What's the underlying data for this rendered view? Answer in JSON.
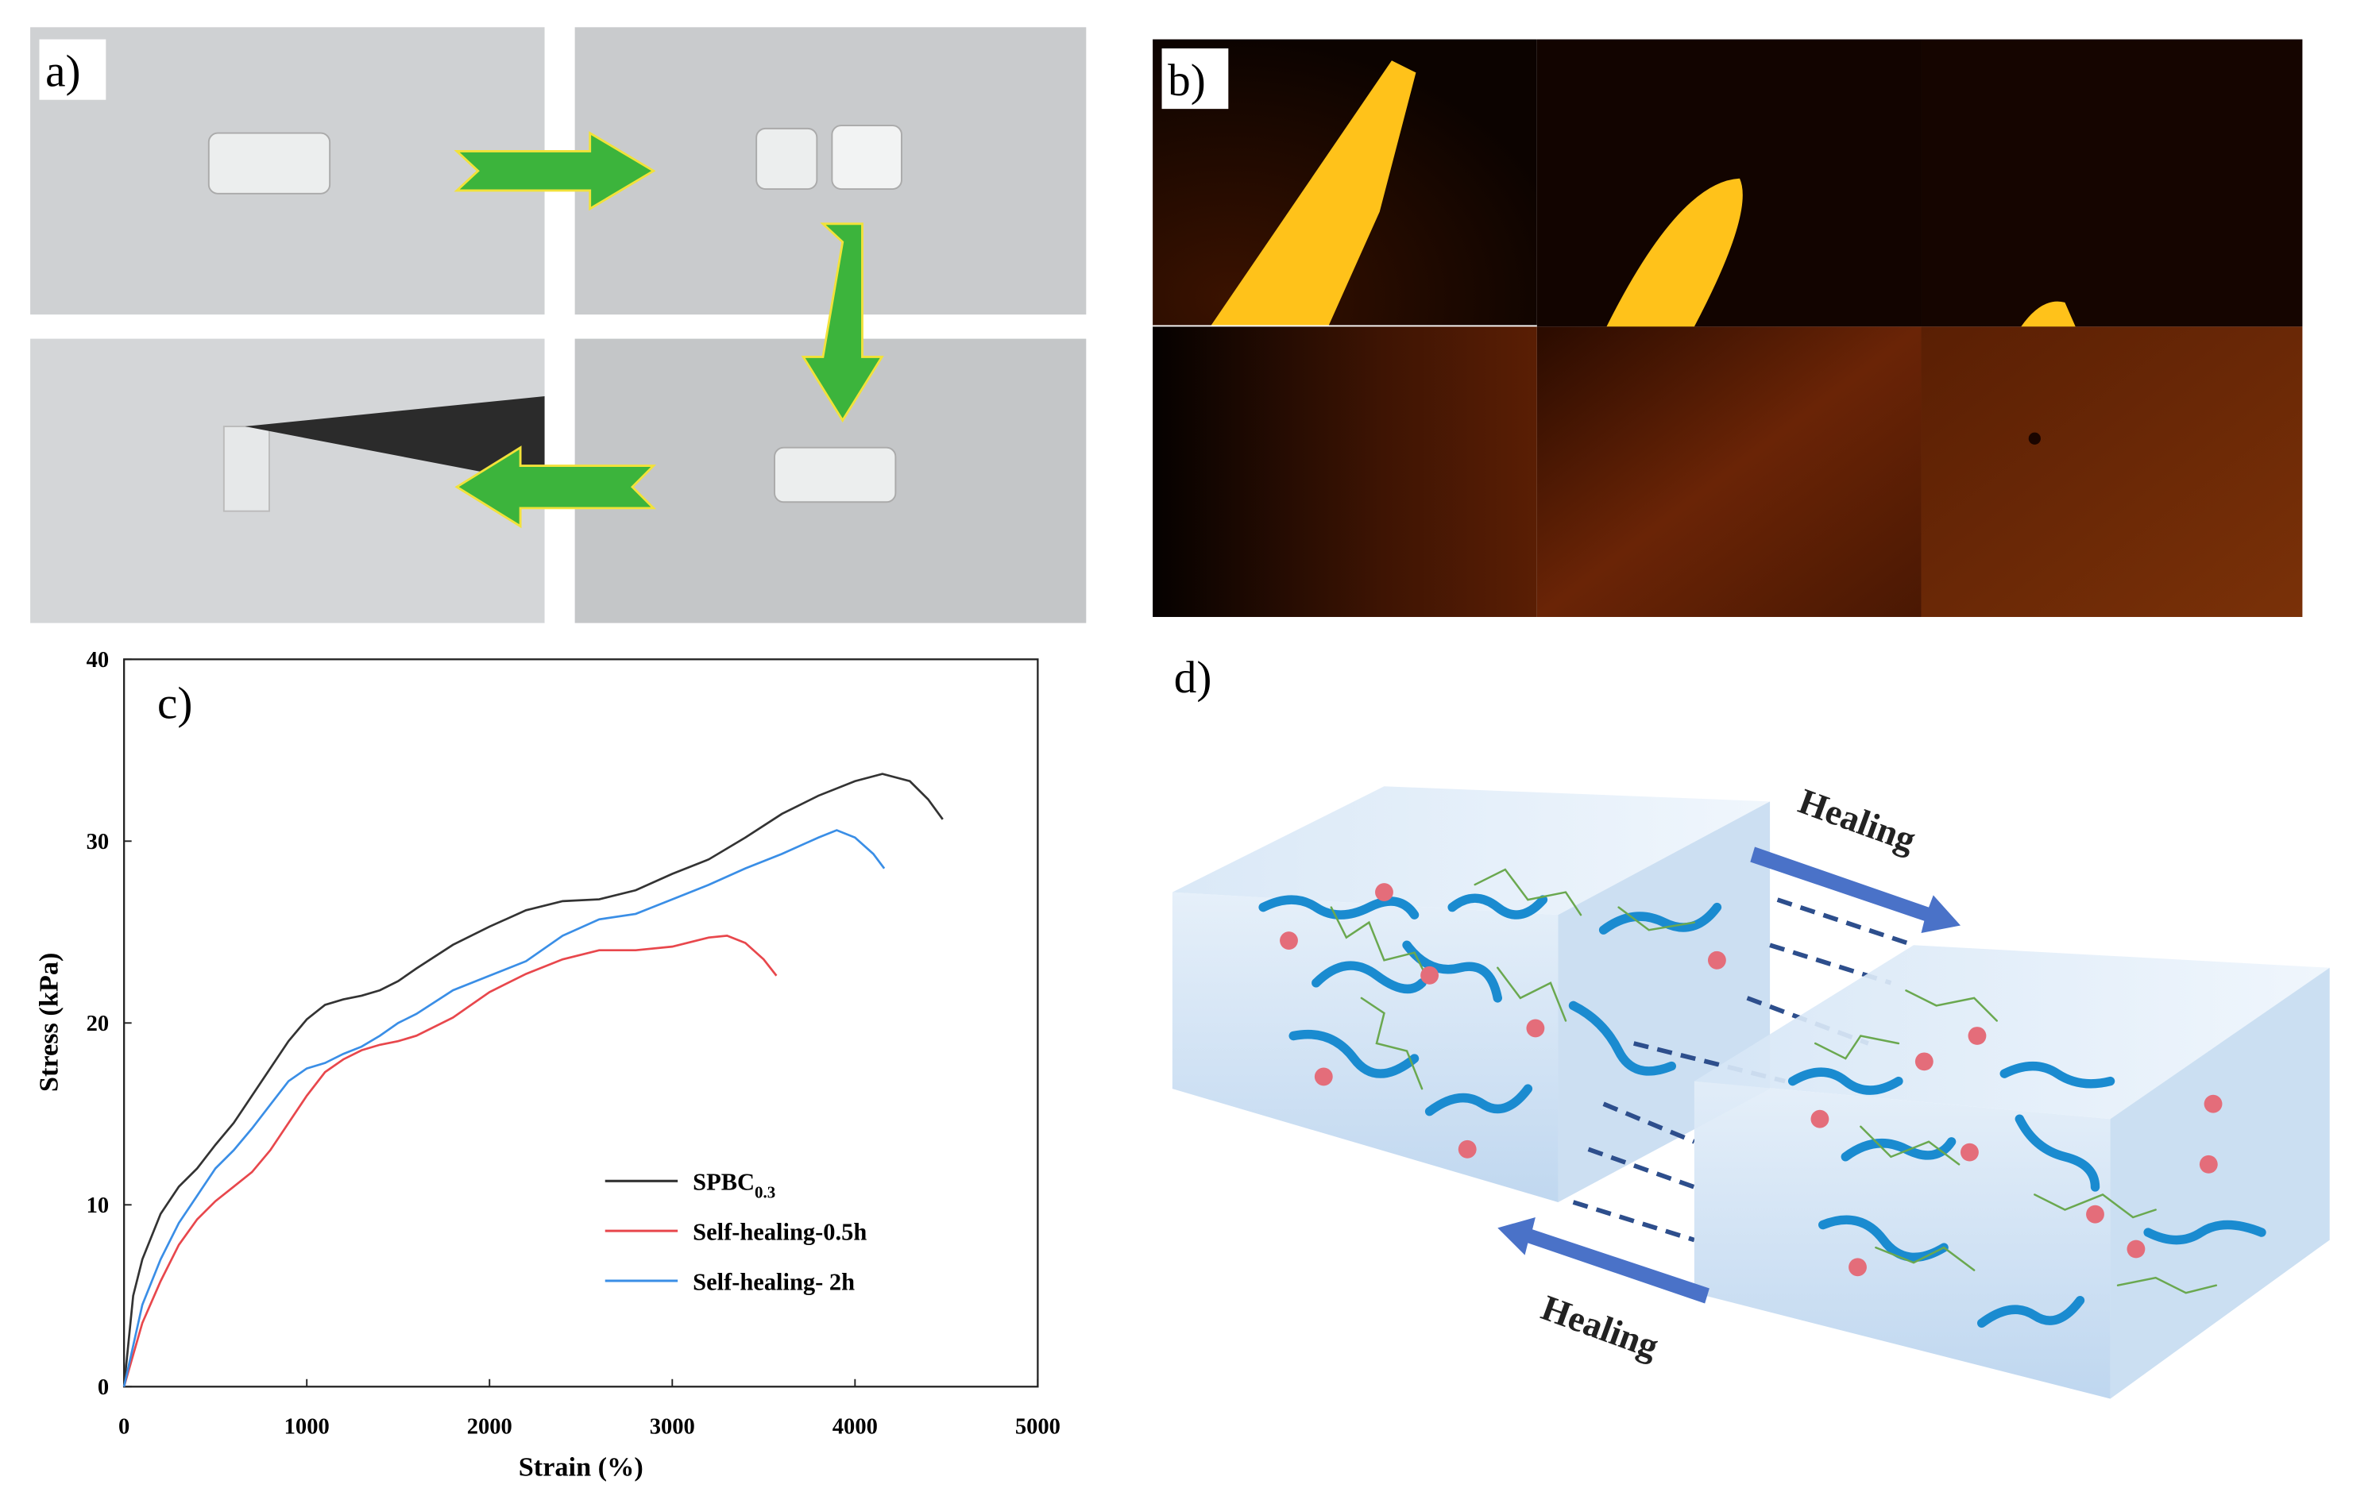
{
  "panel_labels": {
    "a": "a)",
    "b": "b)",
    "c": "c)",
    "d": "d)"
  },
  "chart_data": {
    "type": "line",
    "xlabel": "Strain (%)",
    "ylabel": "Stress (kPa)",
    "xlim": [
      0,
      5000
    ],
    "ylim": [
      0,
      40
    ],
    "xticks": [
      0,
      1000,
      2000,
      3000,
      4000,
      5000
    ],
    "yticks": [
      0,
      10,
      20,
      30,
      40
    ],
    "legend": "lower center",
    "series": [
      {
        "name": "SPBC0.3",
        "color": "#333333",
        "x": [
          0,
          50,
          100,
          200,
          300,
          400,
          500,
          600,
          700,
          800,
          900,
          1000,
          1100,
          1200,
          1300,
          1400,
          1500,
          1600,
          1800,
          2000,
          2200,
          2400,
          2600,
          2800,
          3000,
          3200,
          3400,
          3600,
          3800,
          4000,
          4150,
          4300,
          4400,
          4480
        ],
        "values": [
          0,
          5,
          7,
          9.5,
          11,
          12,
          13.3,
          14.5,
          16,
          17.5,
          19,
          20.2,
          21,
          21.3,
          21.5,
          21.8,
          22.3,
          23,
          24.3,
          25.3,
          26.2,
          26.7,
          26.8,
          27.3,
          28.2,
          29,
          30.2,
          31.5,
          32.5,
          33.3,
          33.7,
          33.3,
          32.3,
          31.2
        ]
      },
      {
        "name": "Self-healing-0.5h",
        "color": "#e8474c",
        "x": [
          0,
          100,
          200,
          300,
          400,
          500,
          600,
          700,
          800,
          900,
          1000,
          1100,
          1200,
          1300,
          1400,
          1500,
          1600,
          1800,
          2000,
          2200,
          2400,
          2600,
          2800,
          3000,
          3200,
          3300,
          3400,
          3500,
          3570
        ],
        "values": [
          0,
          3.5,
          5.8,
          7.8,
          9.2,
          10.2,
          11,
          11.8,
          13,
          14.5,
          16,
          17.3,
          18,
          18.5,
          18.8,
          19,
          19.3,
          20.3,
          21.7,
          22.7,
          23.5,
          24,
          24,
          24.2,
          24.7,
          24.8,
          24.4,
          23.5,
          22.6
        ]
      },
      {
        "name": "Self-healing- 2h",
        "color": "#3a8ee6",
        "x": [
          0,
          100,
          200,
          300,
          400,
          500,
          600,
          700,
          800,
          900,
          1000,
          1100,
          1200,
          1300,
          1400,
          1500,
          1600,
          1800,
          2000,
          2200,
          2400,
          2600,
          2800,
          3000,
          3200,
          3400,
          3600,
          3800,
          3900,
          4000,
          4100,
          4160
        ],
        "values": [
          0,
          4.5,
          7,
          9,
          10.5,
          12,
          13,
          14.2,
          15.5,
          16.8,
          17.5,
          17.8,
          18.3,
          18.7,
          19.3,
          20,
          20.5,
          21.8,
          22.6,
          23.4,
          24.8,
          25.7,
          26,
          26.8,
          27.6,
          28.5,
          29.3,
          30.2,
          30.6,
          30.2,
          29.3,
          28.5
        ]
      }
    ]
  },
  "diagram": {
    "arrow_labels": [
      "Healing",
      "Healing"
    ]
  }
}
